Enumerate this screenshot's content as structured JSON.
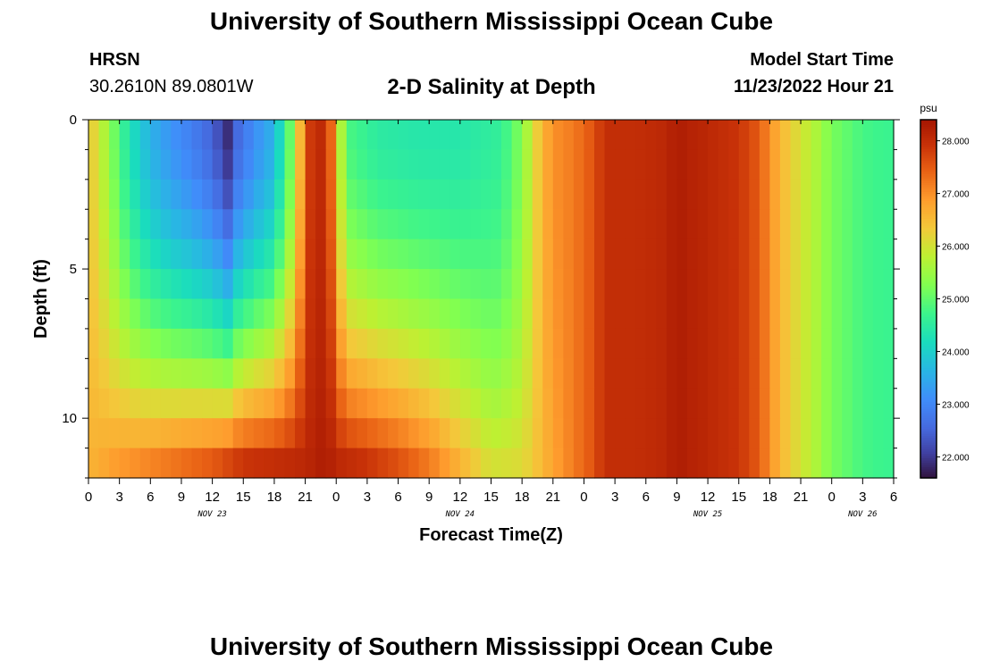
{
  "header": {
    "title": "University of Southern Mississippi Ocean Cube",
    "station": "HRSN",
    "coords": "30.2610N  89.0801W",
    "subtitle": "2-D Salinity at Depth",
    "model_start_label": "Model Start Time",
    "model_start_value": "11/23/2022 Hour 21"
  },
  "footer": {
    "title": "University of Southern Mississippi Ocean Cube"
  },
  "chart_data": {
    "type": "heatmap",
    "title": "2-D Salinity at Depth",
    "xlabel": "Forecast Time(Z)",
    "ylabel": "Depth (ft)",
    "x_range_hours": [
      0,
      78
    ],
    "y_range_ft": [
      0,
      12
    ],
    "x_ticks": [
      {
        "h": 0,
        "label": "0"
      },
      {
        "h": 3,
        "label": "3"
      },
      {
        "h": 6,
        "label": "6"
      },
      {
        "h": 9,
        "label": "9"
      },
      {
        "h": 12,
        "label": "12"
      },
      {
        "h": 15,
        "label": "15"
      },
      {
        "h": 18,
        "label": "18"
      },
      {
        "h": 21,
        "label": "21"
      },
      {
        "h": 24,
        "label": "0"
      },
      {
        "h": 27,
        "label": "3"
      },
      {
        "h": 30,
        "label": "6"
      },
      {
        "h": 33,
        "label": "9"
      },
      {
        "h": 36,
        "label": "12"
      },
      {
        "h": 39,
        "label": "15"
      },
      {
        "h": 42,
        "label": "18"
      },
      {
        "h": 45,
        "label": "21"
      },
      {
        "h": 48,
        "label": "0"
      },
      {
        "h": 51,
        "label": "3"
      },
      {
        "h": 54,
        "label": "6"
      },
      {
        "h": 57,
        "label": "9"
      },
      {
        "h": 60,
        "label": "12"
      },
      {
        "h": 63,
        "label": "15"
      },
      {
        "h": 66,
        "label": "18"
      },
      {
        "h": 69,
        "label": "21"
      },
      {
        "h": 72,
        "label": "0"
      },
      {
        "h": 75,
        "label": "3"
      },
      {
        "h": 78,
        "label": "6"
      }
    ],
    "date_labels": [
      {
        "h": 12,
        "label": "NOV 23"
      },
      {
        "h": 36,
        "label": "NOV 24"
      },
      {
        "h": 60,
        "label": "NOV 25"
      },
      {
        "h": 75,
        "label": "NOV 26"
      }
    ],
    "y_ticks": [
      0,
      5,
      10
    ],
    "depth_levels_ft": [
      0,
      1,
      2,
      3,
      4,
      5,
      6,
      7,
      8,
      9,
      10,
      11
    ],
    "time_step_hours": 1,
    "colorbar": {
      "unit": "psu",
      "min": 21.6,
      "max": 28.4,
      "ticks": [
        "22.000",
        "23.000",
        "24.000",
        "25.000",
        "26.000",
        "27.000",
        "28.000"
      ],
      "tick_values": [
        22,
        23,
        24,
        25,
        26,
        27,
        28
      ]
    },
    "surface_profile": [
      [
        0,
        26.4
      ],
      [
        1,
        26.0
      ],
      [
        2,
        25.4
      ],
      [
        4,
        24.3
      ],
      [
        6,
        23.6
      ],
      [
        8,
        23.2
      ],
      [
        10,
        22.9
      ],
      [
        12,
        22.5
      ],
      [
        13.5,
        21.9
      ],
      [
        14.5,
        22.6
      ],
      [
        16,
        23.1
      ],
      [
        18,
        23.6
      ],
      [
        19,
        24.6
      ],
      [
        20,
        25.5
      ],
      [
        21,
        27.6
      ],
      [
        22,
        28.1
      ],
      [
        23,
        28.0
      ],
      [
        24,
        26.8
      ],
      [
        24.6,
        25.4
      ],
      [
        25.5,
        24.8
      ],
      [
        28,
        24.5
      ],
      [
        32,
        24.4
      ],
      [
        36,
        24.4
      ],
      [
        40,
        24.6
      ],
      [
        42,
        25.3
      ],
      [
        43,
        26.0
      ],
      [
        44,
        26.6
      ],
      [
        45,
        27.0
      ],
      [
        47,
        27.2
      ],
      [
        49,
        27.6
      ],
      [
        50,
        28.0
      ],
      [
        53,
        28.0
      ],
      [
        56,
        28.1
      ],
      [
        57,
        28.3
      ],
      [
        58,
        28.2
      ],
      [
        60,
        28.1
      ],
      [
        63,
        27.9
      ],
      [
        65,
        27.5
      ],
      [
        66,
        27.0
      ],
      [
        67,
        26.6
      ],
      [
        68,
        26.3
      ],
      [
        69,
        26.0
      ],
      [
        70,
        25.8
      ],
      [
        71,
        25.5
      ],
      [
        72,
        25.2
      ],
      [
        75,
        24.8
      ],
      [
        77,
        24.7
      ],
      [
        78,
        24.7
      ]
    ],
    "bottom_profile": [
      [
        0,
        26.6
      ],
      [
        3,
        26.9
      ],
      [
        6,
        27.1
      ],
      [
        9,
        27.3
      ],
      [
        12,
        27.5
      ],
      [
        15,
        27.9
      ],
      [
        18,
        28.0
      ],
      [
        21,
        28.1
      ],
      [
        22,
        28.2
      ],
      [
        23,
        28.3
      ],
      [
        24,
        28.1
      ],
      [
        27,
        27.9
      ],
      [
        30,
        27.6
      ],
      [
        33,
        27.2
      ],
      [
        36,
        26.6
      ],
      [
        39,
        26.0
      ],
      [
        42,
        26.1
      ],
      [
        45,
        26.8
      ],
      [
        47,
        27.2
      ],
      [
        49,
        27.6
      ],
      [
        50,
        28.0
      ],
      [
        53,
        28.0
      ],
      [
        56,
        28.1
      ],
      [
        57,
        28.3
      ],
      [
        58,
        28.2
      ],
      [
        60,
        28.1
      ],
      [
        63,
        27.9
      ],
      [
        65,
        27.5
      ],
      [
        66,
        27.0
      ],
      [
        67,
        26.6
      ],
      [
        68,
        26.3
      ],
      [
        69,
        26.0
      ],
      [
        70,
        25.8
      ],
      [
        71,
        25.5
      ],
      [
        72,
        25.2
      ],
      [
        75,
        24.8
      ],
      [
        77,
        24.7
      ],
      [
        78,
        24.7
      ]
    ]
  }
}
